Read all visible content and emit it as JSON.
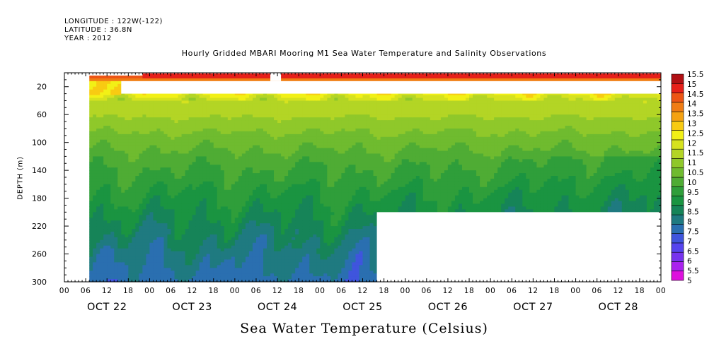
{
  "header": {
    "longitude": "LONGITUDE : 122W(-122)",
    "latitude": "LATITUDE : 36.8N",
    "year": "YEAR : 2012"
  },
  "chart_data": {
    "type": "heatmap",
    "title": "Hourly Gridded MBARI Mooring M1 Sea Water Temperature and Salinity Observations",
    "xlabel": "",
    "ylabel": "DEPTH (m)",
    "colorbar_title": "Sea Water Temperature (Celsius)",
    "x_unit": "hours since OCT 22 00:00",
    "xlim": [
      0,
      168
    ],
    "ylim": [
      300,
      0
    ],
    "y_reversed": true,
    "y_ticks": [
      20,
      60,
      100,
      140,
      180,
      220,
      260,
      300
    ],
    "x_tick_labels": [
      "00",
      "06",
      "12",
      "18",
      "00",
      "06",
      "12",
      "18",
      "00",
      "06",
      "12",
      "18",
      "00",
      "06",
      "12",
      "18",
      "00",
      "06",
      "12",
      "18",
      "00",
      "06",
      "12",
      "18",
      "00",
      "06",
      "12",
      "18",
      "00"
    ],
    "x_day_labels": [
      "OCT 22",
      "OCT 23",
      "OCT 24",
      "OCT 25",
      "OCT 26",
      "OCT 27",
      "OCT 28"
    ],
    "data_start_hour": 7,
    "deep_data_end_hour": 88,
    "deep_data_end_depth": 200,
    "surface_gap": {
      "start_hour": 16,
      "depth_top": 12,
      "depth_bottom": 30
    },
    "colorbar_levels": [
      5,
      5.5,
      6,
      6.5,
      7,
      7.5,
      8,
      8.5,
      9,
      9.5,
      10,
      10.5,
      11,
      11.5,
      12,
      12.5,
      13,
      13.5,
      14,
      14.5,
      15,
      15.5
    ],
    "colorbar_labels": [
      "15.5",
      "15",
      "14.5",
      "14",
      "13.5",
      "13",
      "12.5",
      "12",
      "11.5",
      "11",
      "10.5",
      "10",
      "9.5",
      "9",
      "8.5",
      "8",
      "7.5",
      "7",
      "6.5",
      "6",
      "5.5",
      "5"
    ],
    "colors": [
      "#dd11dd",
      "#aa22ee",
      "#7733ee",
      "#5544ee",
      "#3f55dd",
      "#2a6fb0",
      "#1f7a80",
      "#168458",
      "#1a9441",
      "#2f9e3a",
      "#4fac34",
      "#6fbb2f",
      "#8fc82a",
      "#b3d525",
      "#d6e21e",
      "#f2f016",
      "#f8cb12",
      "#f5a212",
      "#f07c14",
      "#ed5515",
      "#e6201a",
      "#b11014"
    ],
    "temperature_profile": {
      "depths": [
        5,
        20,
        40,
        60,
        80,
        100,
        120,
        140,
        160,
        180,
        200,
        220,
        240,
        260,
        280,
        300
      ],
      "temperatures": [
        14.9,
        13.3,
        12.0,
        11.6,
        11.1,
        10.7,
        10.3,
        10.0,
        9.7,
        9.4,
        9.1,
        8.8,
        8.5,
        8.2,
        8.0,
        7.8
      ]
    }
  }
}
